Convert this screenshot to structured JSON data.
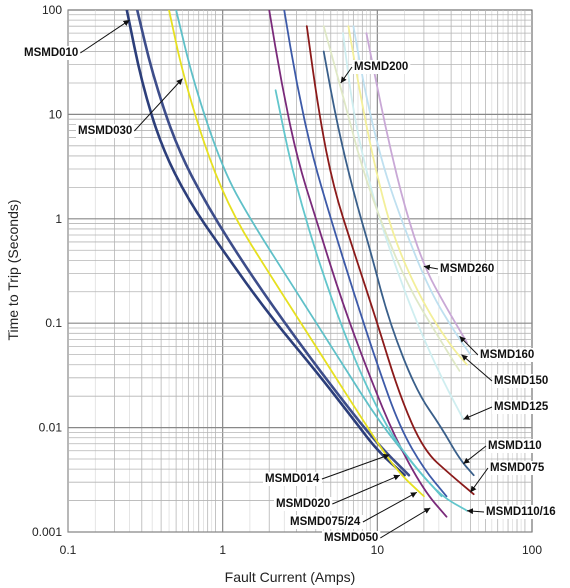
{
  "chart_data": {
    "type": "line",
    "title": "",
    "xlabel": "Fault Current  (Amps)",
    "ylabel": "Time to Trip (Seconds)",
    "xscale": "log",
    "yscale": "log",
    "xlim": [
      0.1,
      100
    ],
    "ylim": [
      0.001,
      100
    ],
    "grid": true,
    "xtick_labels": [
      "0.1",
      "1",
      "10",
      "100"
    ],
    "ytick_labels": [
      "100",
      "10",
      "1",
      "0.1",
      "0.01",
      "0.001"
    ],
    "series": [
      {
        "name": "MSMD010",
        "color": "#2c3e7a",
        "points": [
          [
            0.24,
            100
          ],
          [
            0.3,
            20
          ],
          [
            0.4,
            5
          ],
          [
            0.6,
            1.5
          ],
          [
            1,
            0.5
          ],
          [
            2,
            0.12
          ],
          [
            4,
            0.035
          ],
          [
            7,
            0.012
          ],
          [
            10,
            0.006
          ],
          [
            15,
            0.0035
          ]
        ]
      },
      {
        "name": "MSMD014",
        "color": "#3d4d8a",
        "points": [
          [
            0.28,
            100
          ],
          [
            0.35,
            25
          ],
          [
            0.5,
            5
          ],
          [
            0.8,
            1.3
          ],
          [
            1.5,
            0.3
          ],
          [
            3,
            0.07
          ],
          [
            6,
            0.018
          ],
          [
            10,
            0.007
          ],
          [
            16,
            0.0035
          ]
        ]
      },
      {
        "name": "MSMD020",
        "color": "#e6e020",
        "points": [
          [
            0.45,
            100
          ],
          [
            0.55,
            25
          ],
          [
            0.8,
            4
          ],
          [
            1.2,
            1
          ],
          [
            2,
            0.3
          ],
          [
            4,
            0.06
          ],
          [
            8,
            0.012
          ],
          [
            13,
            0.004
          ],
          [
            20,
            0.0022
          ]
        ]
      },
      {
        "name": "MSMD030",
        "color": "#5fc0c8",
        "points": [
          [
            0.5,
            100
          ],
          [
            0.65,
            20
          ],
          [
            1,
            3
          ],
          [
            1.5,
            1
          ],
          [
            3,
            0.2
          ],
          [
            6,
            0.04
          ],
          [
            10,
            0.012
          ],
          [
            18,
            0.004
          ],
          [
            26,
            0.0022
          ]
        ]
      },
      {
        "name": "MSMD050",
        "color": "#7a2a7a",
        "points": [
          [
            2,
            100
          ],
          [
            2.4,
            20
          ],
          [
            3,
            4
          ],
          [
            4,
            1
          ],
          [
            6,
            0.15
          ],
          [
            9,
            0.03
          ],
          [
            13,
            0.008
          ],
          [
            20,
            0.0025
          ],
          [
            28,
            0.0014
          ]
        ]
      },
      {
        "name": "MSMD075/24",
        "color": "#3d5aa8",
        "points": [
          [
            2.5,
            100
          ],
          [
            3,
            20
          ],
          [
            3.8,
            4
          ],
          [
            5,
            1
          ],
          [
            7,
            0.2
          ],
          [
            10,
            0.04
          ],
          [
            14,
            0.01
          ],
          [
            20,
            0.004
          ],
          [
            28,
            0.0022
          ]
        ]
      },
      {
        "name": "MSMD075",
        "color": "#8b1a1a",
        "points": [
          [
            3.5,
            70
          ],
          [
            4.2,
            10
          ],
          [
            5.2,
            2
          ],
          [
            7,
            0.5
          ],
          [
            10,
            0.1
          ],
          [
            14,
            0.02
          ],
          [
            20,
            0.006
          ],
          [
            30,
            0.0035
          ],
          [
            42,
            0.0023
          ]
        ]
      },
      {
        "name": "MSMD110",
        "color": "#3a5f8a",
        "points": [
          [
            4.5,
            40
          ],
          [
            5.5,
            8
          ],
          [
            7,
            1.8
          ],
          [
            9,
            0.5
          ],
          [
            12,
            0.1
          ],
          [
            18,
            0.022
          ],
          [
            26,
            0.01
          ],
          [
            34,
            0.005
          ],
          [
            42,
            0.0035
          ]
        ]
      },
      {
        "name": "MSMD110/16",
        "color": "#62c6cc",
        "points": [
          [
            2.2,
            17
          ],
          [
            2.8,
            3
          ],
          [
            3.8,
            0.6
          ],
          [
            5.5,
            0.12
          ],
          [
            8,
            0.03
          ],
          [
            12,
            0.009
          ],
          [
            18,
            0.004
          ],
          [
            26,
            0.0022
          ],
          [
            38,
            0.0016
          ]
        ]
      },
      {
        "name": "MSMD125",
        "color": "#cfeef0",
        "points": [
          [
            6,
            60
          ],
          [
            7,
            10
          ],
          [
            9,
            2
          ],
          [
            12,
            0.5
          ],
          [
            18,
            0.1
          ],
          [
            26,
            0.03
          ],
          [
            36,
            0.012
          ]
        ]
      },
      {
        "name": "MSMD150",
        "color": "#f3ef9a",
        "points": [
          [
            6.5,
            70
          ],
          [
            8,
            12
          ],
          [
            10,
            2.5
          ],
          [
            13,
            0.6
          ],
          [
            20,
            0.15
          ],
          [
            30,
            0.06
          ],
          [
            38,
            0.04
          ]
        ]
      },
      {
        "name": "MSMD160",
        "color": "#bfe0f0",
        "points": [
          [
            7,
            70
          ],
          [
            8.5,
            14
          ],
          [
            11,
            3
          ],
          [
            15,
            0.8
          ],
          [
            22,
            0.2
          ],
          [
            32,
            0.08
          ],
          [
            40,
            0.05
          ]
        ]
      },
      {
        "name": "MSMD200",
        "color": "#dfe8c6",
        "points": [
          [
            4.5,
            70
          ],
          [
            6,
            15
          ],
          [
            8,
            3
          ],
          [
            11,
            0.8
          ],
          [
            16,
            0.22
          ],
          [
            24,
            0.08
          ],
          [
            34,
            0.035
          ]
        ]
      },
      {
        "name": "MSMD260",
        "color": "#c9a8d6",
        "points": [
          [
            8.5,
            60
          ],
          [
            10,
            18
          ],
          [
            12,
            5
          ],
          [
            15,
            1.3
          ],
          [
            20,
            0.35
          ],
          [
            28,
            0.14
          ],
          [
            38,
            0.065
          ]
        ]
      }
    ],
    "annotations": [
      {
        "text": "MSMD010",
        "series": "MSMD010"
      },
      {
        "text": "MSMD030",
        "series": "MSMD030"
      },
      {
        "text": "MSMD200",
        "series": "MSMD200"
      },
      {
        "text": "MSMD260",
        "series": "MSMD260"
      },
      {
        "text": "MSMD160",
        "series": "MSMD160"
      },
      {
        "text": "MSMD150",
        "series": "MSMD150"
      },
      {
        "text": "MSMD125",
        "series": "MSMD125"
      },
      {
        "text": "MSMD110",
        "series": "MSMD110"
      },
      {
        "text": "MSMD075",
        "series": "MSMD075"
      },
      {
        "text": "MSMD014",
        "series": "MSMD014"
      },
      {
        "text": "MSMD020",
        "series": "MSMD020"
      },
      {
        "text": "MSMD075/24",
        "series": "MSMD075/24"
      },
      {
        "text": "MSMD050",
        "series": "MSMD050"
      },
      {
        "text": "MSMD110/16",
        "series": "MSMD110/16"
      }
    ]
  }
}
